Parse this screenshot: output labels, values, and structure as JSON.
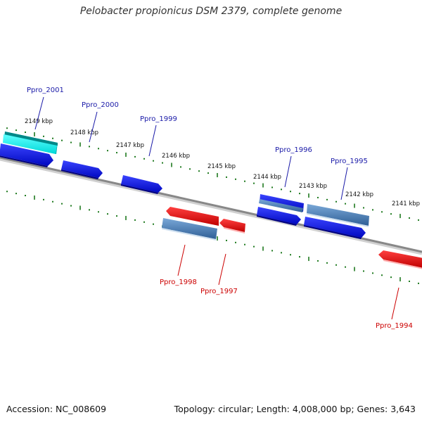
{
  "title": "Pelobacter propionicus DSM 2379, complete genome",
  "footer": {
    "accession": "Accession: NC_008609",
    "summary": "Topology: circular; Length: 4,008,000 bp; Genes: 3,643"
  },
  "colors": {
    "forward_label": "#1a1aa8",
    "reverse_label": "#cc0000",
    "backbone": "#888888",
    "tick": "#1f7a1f",
    "gene_blue": "#0a10e0",
    "gene_steel": "#4d80b8",
    "gene_red": "#e81010",
    "gene_cyan": "#10f0f0"
  },
  "ruler_labels": [
    "2149 kbp",
    "2148 kbp",
    "2147 kbp",
    "2146 kbp",
    "2145 kbp",
    "2144 kbp",
    "2143 kbp",
    "2142 kbp",
    "2141 kbp"
  ],
  "forward_genes": [
    {
      "id": "Ppro_2001",
      "color": "cyan"
    },
    {
      "id": "Ppro_2000",
      "color": "blue"
    },
    {
      "id": "Ppro_1999",
      "color": "blue"
    },
    {
      "id": "Ppro_1996",
      "color": "blue"
    },
    {
      "id": "Ppro_1995",
      "color": "steel"
    }
  ],
  "reverse_genes": [
    {
      "id": "Ppro_1998",
      "color": "steel"
    },
    {
      "id": "Ppro_1997",
      "color": "red"
    },
    {
      "id": "Ppro_1994",
      "color": "red"
    }
  ]
}
